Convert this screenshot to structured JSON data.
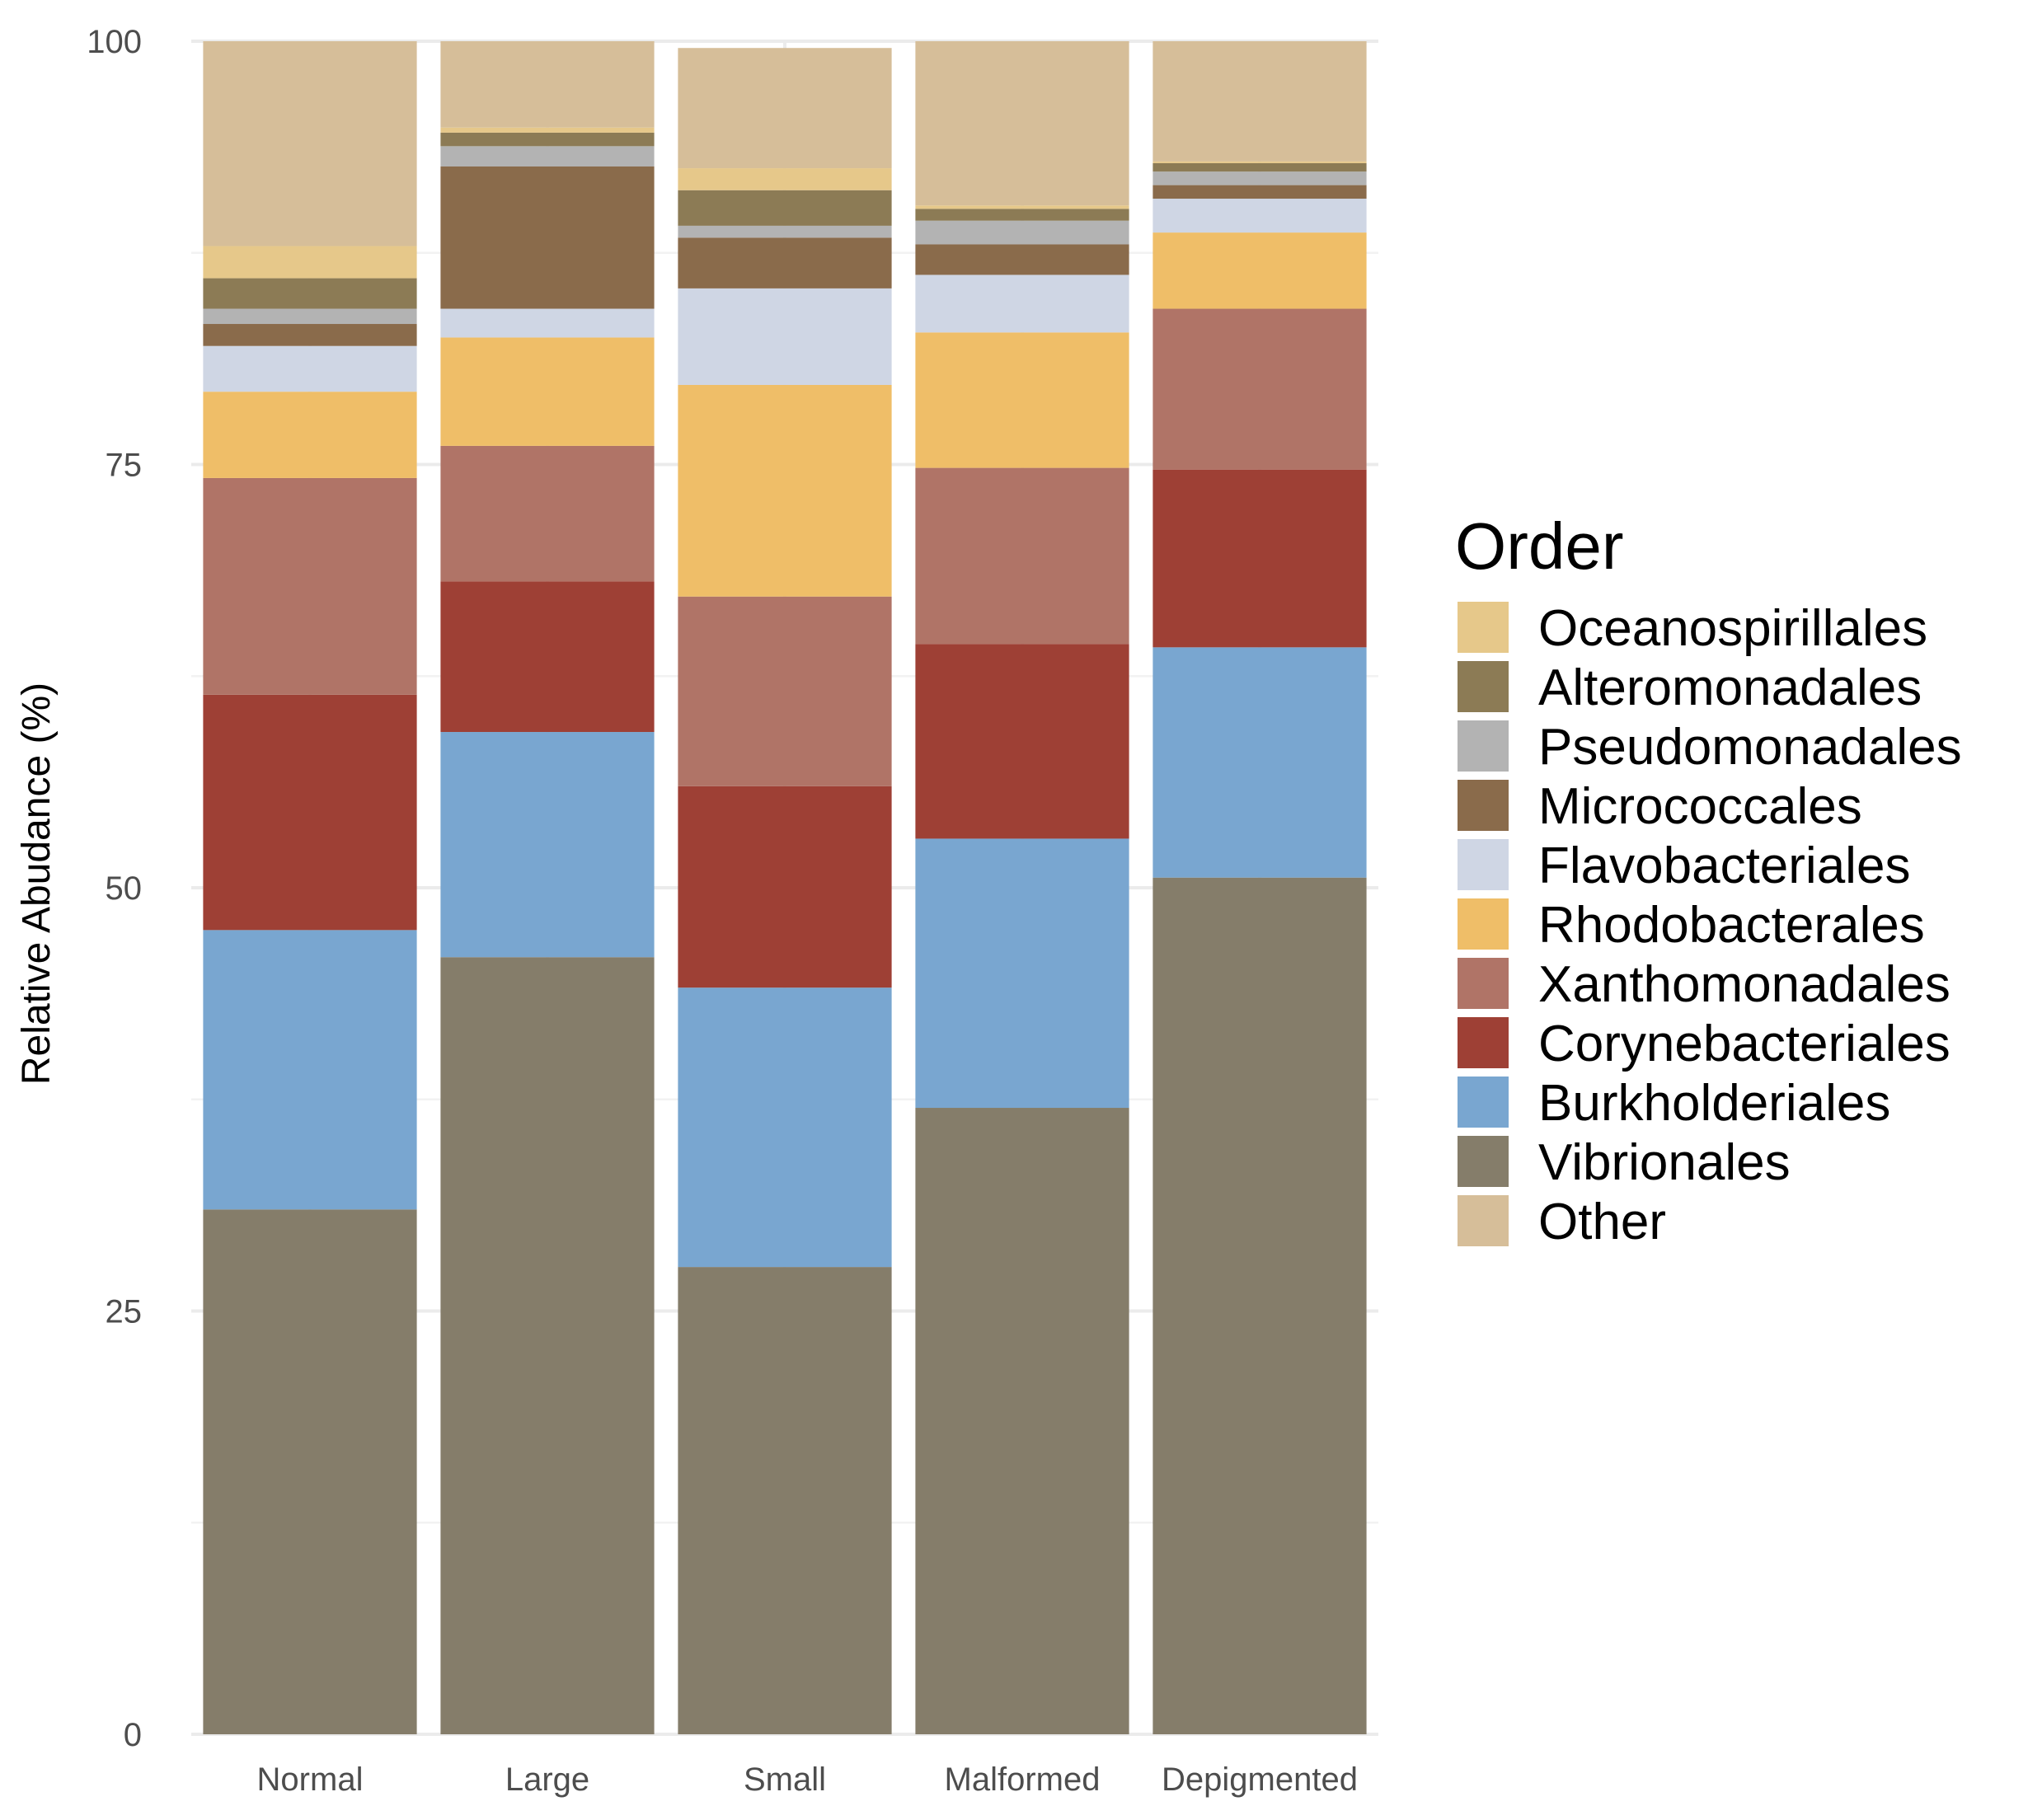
{
  "chart_data": {
    "type": "bar",
    "stacked": true,
    "title": "",
    "xlabel": "",
    "ylabel": "Relative Abudance (%)",
    "ylim": [
      0,
      100
    ],
    "yticks": [
      "0",
      "25",
      "50",
      "75",
      "100"
    ],
    "legend_title": "Order",
    "legend_position": "right",
    "categories": [
      "Normal",
      "Large",
      "Small",
      "Malformed",
      "Depigmented"
    ],
    "series": [
      {
        "name": "Vibrionales",
        "color": "#857d6a",
        "values": [
          31.0,
          45.9,
          27.6,
          37.0,
          50.6
        ]
      },
      {
        "name": "Burkholderiales",
        "color": "#79a6d0",
        "values": [
          16.5,
          13.3,
          16.5,
          15.9,
          13.6
        ]
      },
      {
        "name": "Corynebacteriales",
        "color": "#9e4035",
        "values": [
          13.9,
          8.9,
          11.9,
          11.5,
          10.5
        ]
      },
      {
        "name": "Xanthomonadales",
        "color": "#b07467",
        "values": [
          12.8,
          8.0,
          11.2,
          10.4,
          9.5
        ]
      },
      {
        "name": "Rhodobacterales",
        "color": "#efbe68",
        "values": [
          5.1,
          6.4,
          12.5,
          8.0,
          4.5
        ]
      },
      {
        "name": "Flavobacteriales",
        "color": "#cfd6e4",
        "values": [
          2.7,
          1.7,
          5.7,
          3.4,
          2.0
        ]
      },
      {
        "name": "Micrococcales",
        "color": "#8a6b4b",
        "values": [
          1.3,
          8.4,
          3.0,
          1.8,
          0.8
        ]
      },
      {
        "name": "Pseudomonadales",
        "color": "#b3b3b3",
        "values": [
          0.9,
          1.2,
          0.7,
          1.4,
          0.8
        ]
      },
      {
        "name": "Alteromonadales",
        "color": "#8c7b55",
        "values": [
          1.8,
          0.8,
          2.1,
          0.7,
          0.5
        ]
      },
      {
        "name": "Oceanospirillales",
        "color": "#e6c88a",
        "values": [
          1.9,
          0.3,
          1.3,
          0.2,
          0.1
        ]
      },
      {
        "name": "Other",
        "color": "#d6be99",
        "values": [
          12.1,
          5.1,
          7.1,
          9.7,
          7.1
        ]
      }
    ],
    "legend_order": [
      "Oceanospirillales",
      "Alteromonadales",
      "Pseudomonadales",
      "Micrococcales",
      "Flavobacteriales",
      "Rhodobacterales",
      "Xanthomonadales",
      "Corynebacteriales",
      "Burkholderiales",
      "Vibrionales",
      "Other"
    ]
  }
}
